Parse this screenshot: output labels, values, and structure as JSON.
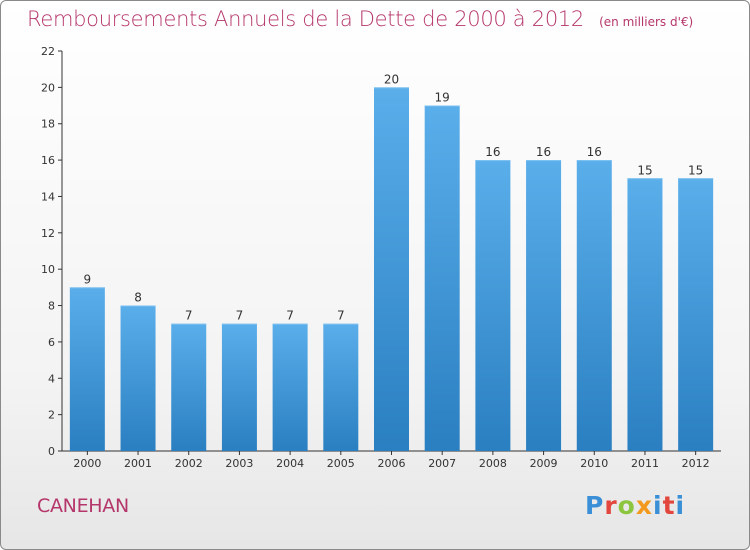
{
  "title": "Remboursements Annuels de la Dette de 2000 à 2012",
  "unit": "(en milliers d'€)",
  "town": "CANEHAN",
  "logo": "Proxiti",
  "colors": {
    "title": "#b5366b",
    "bar_top": "#5aaeea",
    "bar_bottom": "#2a7fc1",
    "axis": "#333333",
    "grid": "#cccccc"
  },
  "chart_data": {
    "type": "bar",
    "categories": [
      "2000",
      "2001",
      "2002",
      "2003",
      "2004",
      "2005",
      "2006",
      "2007",
      "2008",
      "2009",
      "2010",
      "2011",
      "2012"
    ],
    "values": [
      9,
      8,
      7,
      7,
      7,
      7,
      20,
      19,
      16,
      16,
      16,
      15,
      15
    ],
    "title": "Remboursements Annuels de la Dette de 2000 à 2012",
    "xlabel": "",
    "ylabel": "",
    "ylim": [
      0,
      22
    ],
    "yticks": [
      0,
      2,
      4,
      6,
      8,
      10,
      12,
      14,
      16,
      18,
      20,
      22
    ],
    "grid": false,
    "data_labels": true
  }
}
